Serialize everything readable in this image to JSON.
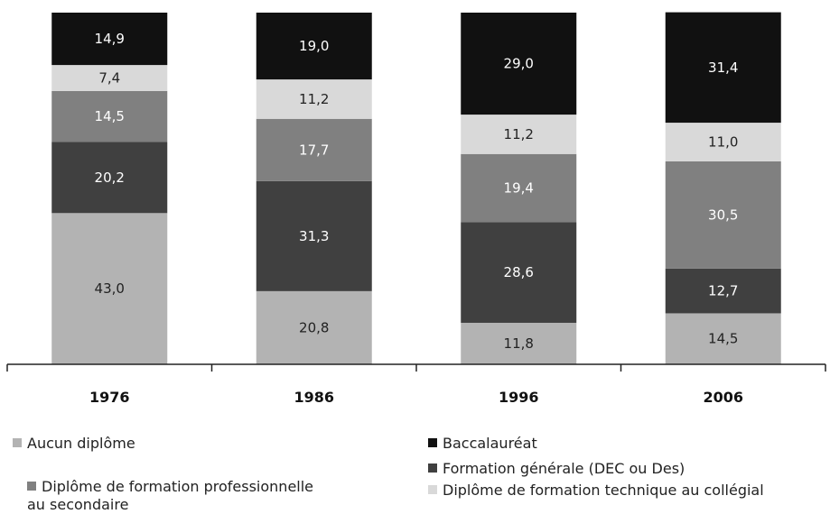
{
  "chart_data": {
    "type": "bar",
    "stacked": true,
    "categories": [
      "1976",
      "1986",
      "1996",
      "2006"
    ],
    "series": [
      {
        "name": "Aucun diplôme",
        "values": [
          43.0,
          20.8,
          11.8,
          14.5
        ],
        "color": "#b3b3b3",
        "labels": [
          "43,0",
          "20,8",
          "11,8",
          "14,5"
        ],
        "label_color": "#222222"
      },
      {
        "name": "Formation générale (DEC ou Des)",
        "values": [
          20.2,
          31.3,
          28.6,
          12.7
        ],
        "color": "#404040",
        "labels": [
          "20,2",
          "31,3",
          "28,6",
          "12,7"
        ],
        "label_color": "#ffffff"
      },
      {
        "name": "Diplôme de formation professionnelle au secondaire",
        "values": [
          14.5,
          17.7,
          19.4,
          30.5
        ],
        "color": "#808080",
        "labels": [
          "14,5",
          "17,7",
          "19,4",
          "30,5"
        ],
        "label_color": "#ffffff"
      },
      {
        "name": "Diplôme de formation technique au collégial",
        "values": [
          7.4,
          11.2,
          11.2,
          11.0
        ],
        "color": "#d9d9d9",
        "labels": [
          "7,4",
          "11,2",
          "11,2",
          "11,0"
        ],
        "label_color": "#222222"
      },
      {
        "name": "Baccalauréat",
        "values": [
          14.9,
          19.0,
          29.0,
          31.4
        ],
        "color": "#111111",
        "labels": [
          "14,9",
          "19,0",
          "29,0",
          "31,4"
        ],
        "label_color": "#ffffff"
      }
    ],
    "ylim": [
      0,
      100
    ],
    "xlabel": "",
    "ylabel": "",
    "grid": false,
    "legend_position": "bottom"
  },
  "legend": {
    "left": [
      {
        "label": "Aucun diplôme",
        "color": "#b3b3b3"
      },
      {
        "label": "Diplôme de formation professionnelle\nau secondaire",
        "color": "#808080"
      }
    ],
    "right": [
      {
        "label": "Baccalauréat",
        "color": "#111111"
      },
      {
        "label": "Formation générale (DEC ou Des)",
        "color": "#404040"
      },
      {
        "label": "Diplôme de formation technique au collégial",
        "color": "#d9d9d9"
      }
    ]
  }
}
